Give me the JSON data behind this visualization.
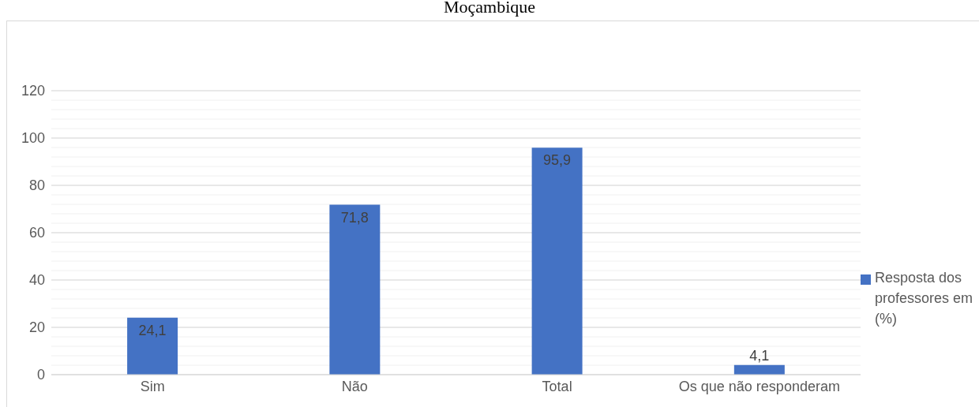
{
  "chart_data": {
    "type": "bar",
    "title": "Moçambique",
    "categories": [
      "Sim",
      "Não",
      "Total",
      "Os que não responderam"
    ],
    "series": [
      {
        "name": "Resposta dos professores em (%)",
        "color": "#4472c4",
        "values": [
          24.1,
          71.8,
          95.9,
          4.1
        ],
        "value_labels": [
          "24,1",
          "71,8",
          "95,9",
          "4,1"
        ]
      }
    ],
    "ylim": [
      0,
      120
    ],
    "yticks": [
      0,
      {
        "value": 4,
        "label": null
      },
      {
        "value": 8,
        "label": null
      },
      {
        "value": 12,
        "label": null
      },
      {
        "value": 16,
        "label": null
      },
      20,
      {
        "value": 24,
        "label": null
      },
      {
        "value": 28,
        "label": null
      },
      {
        "value": 32,
        "label": null
      },
      {
        "value": 36,
        "label": null
      },
      40,
      {
        "value": 44,
        "label": null
      },
      {
        "value": 48,
        "label": null
      },
      {
        "value": 52,
        "label": null
      },
      {
        "value": 56,
        "label": null
      },
      60,
      {
        "value": 64,
        "label": null
      },
      {
        "value": 68,
        "label": null
      },
      {
        "value": 72,
        "label": null
      },
      {
        "value": 76,
        "label": null
      },
      80,
      {
        "value": 84,
        "label": null
      },
      {
        "value": 88,
        "label": null
      },
      {
        "value": 92,
        "label": null
      },
      {
        "value": 96,
        "label": null
      },
      100,
      {
        "value": 104,
        "label": null
      },
      {
        "value": 108,
        "label": null
      },
      {
        "value": 112,
        "label": null
      },
      {
        "value": 116,
        "label": null
      },
      120
    ],
    "grid": "y",
    "legend": "right"
  }
}
